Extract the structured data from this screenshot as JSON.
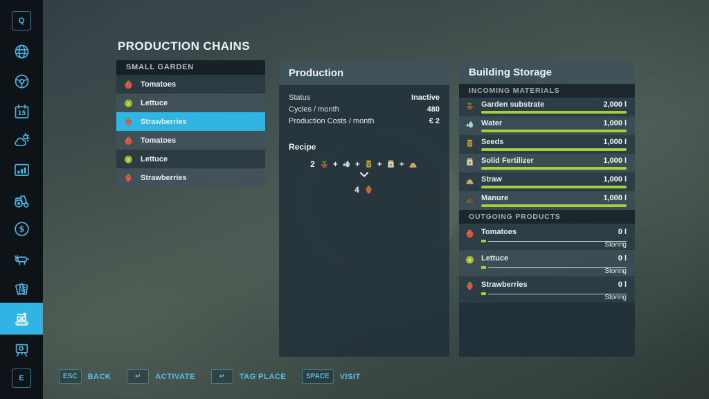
{
  "title": "PRODUCTION CHAINS",
  "sidebar": {
    "items": [
      {
        "name": "keycap-q",
        "type": "key",
        "label": "Q"
      },
      {
        "name": "map-icon",
        "type": "icon",
        "icon": "globe"
      },
      {
        "name": "garage-icon",
        "type": "icon",
        "icon": "steering-wheel"
      },
      {
        "name": "calendar-icon",
        "type": "icon",
        "icon": "calendar",
        "label": "15"
      },
      {
        "name": "weather-icon",
        "type": "icon",
        "icon": "weather"
      },
      {
        "name": "statistics-icon",
        "type": "icon",
        "icon": "bar-chart"
      },
      {
        "name": "vehicles-icon",
        "type": "icon",
        "icon": "tractor"
      },
      {
        "name": "finances-icon",
        "type": "icon",
        "icon": "dollar-coin"
      },
      {
        "name": "animals-icon",
        "type": "icon",
        "icon": "cow"
      },
      {
        "name": "contracts-icon",
        "type": "icon",
        "icon": "documents"
      },
      {
        "name": "production-chains-icon",
        "type": "icon",
        "icon": "conveyor",
        "active": true
      },
      {
        "name": "placeables-icon",
        "type": "icon",
        "icon": "easel"
      },
      {
        "name": "keycap-e",
        "type": "key",
        "label": "E"
      }
    ]
  },
  "chains": {
    "header": "SMALL GARDEN",
    "items": [
      {
        "label": "Tomatoes",
        "icon": "tomato",
        "selected": false
      },
      {
        "label": "Lettuce",
        "icon": "lettuce",
        "selected": false
      },
      {
        "label": "Strawberries",
        "icon": "strawberry",
        "selected": true
      },
      {
        "label": "Tomatoes",
        "icon": "tomato",
        "selected": false
      },
      {
        "label": "Lettuce",
        "icon": "lettuce",
        "selected": false
      },
      {
        "label": "Strawberries",
        "icon": "strawberry",
        "selected": false
      }
    ]
  },
  "production": {
    "title": "Production",
    "stats": [
      {
        "label": "Status",
        "value": "Inactive"
      },
      {
        "label": "Cycles / month",
        "value": "480"
      },
      {
        "label": "Production Costs / month",
        "value": "€ 2"
      }
    ],
    "recipe": {
      "label": "Recipe",
      "inputs": [
        {
          "qty": "2",
          "icon": "substrate",
          "name": "garden-substrate"
        },
        {
          "qty": "",
          "icon": "water",
          "name": "water"
        },
        {
          "qty": "",
          "icon": "seeds",
          "name": "seeds"
        },
        {
          "qty": "",
          "icon": "fertilizer",
          "name": "solid-fertilizer"
        },
        {
          "qty": "",
          "icon": "straw",
          "name": "straw"
        }
      ],
      "plus_sign": "+",
      "output": {
        "qty": "4",
        "icon": "strawberry",
        "name": "strawberries"
      }
    }
  },
  "storage": {
    "title": "Building Storage",
    "incoming_header": "INCOMING MATERIALS",
    "incoming": [
      {
        "label": "Garden substrate",
        "icon": "substrate",
        "value": "2,000 l",
        "fill": 100
      },
      {
        "label": "Water",
        "icon": "water",
        "value": "1,000 l",
        "fill": 100
      },
      {
        "label": "Seeds",
        "icon": "seeds",
        "value": "1,000 l",
        "fill": 100
      },
      {
        "label": "Solid Fertilizer",
        "icon": "fertilizer",
        "value": "1,000 l",
        "fill": 100
      },
      {
        "label": "Straw",
        "icon": "straw",
        "value": "1,000 l",
        "fill": 100
      },
      {
        "label": "Manure",
        "icon": "manure",
        "value": "1,000 l",
        "fill": 100
      }
    ],
    "outgoing_header": "OUTGOING PRODUCTS",
    "outgoing": [
      {
        "label": "Tomatoes",
        "icon": "tomato",
        "value": "0 l",
        "status": "Storing",
        "fill": 4
      },
      {
        "label": "Lettuce",
        "icon": "lettuce",
        "value": "0 l",
        "status": "Storing",
        "fill": 4
      },
      {
        "label": "Strawberries",
        "icon": "strawberry",
        "value": "0 l",
        "status": "Storing",
        "fill": 4
      }
    ]
  },
  "footer": {
    "buttons": [
      {
        "key": "ESC",
        "label": "BACK"
      },
      {
        "key": "↵",
        "label": "ACTIVATE"
      },
      {
        "key": "↵",
        "label": "TAG PLACE"
      },
      {
        "key": "SPACE",
        "label": "VISIT"
      }
    ]
  },
  "colors": {
    "accent": "#2fb4e4",
    "bar_green": "#a6cf3d",
    "sidebar_icon": "#4db4e2"
  }
}
